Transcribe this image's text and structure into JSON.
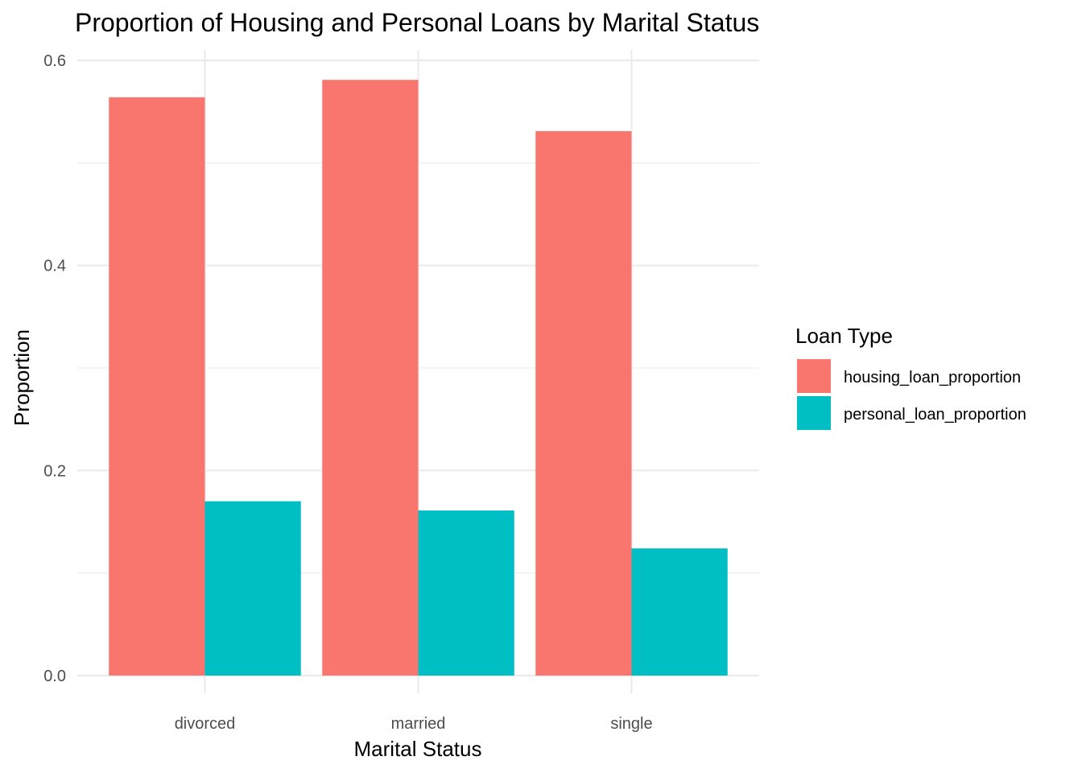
{
  "chart_data": {
    "type": "bar",
    "title": "Proportion of Housing and Personal Loans by Marital Status",
    "xlabel": "Marital Status",
    "ylabel": "Proportion",
    "categories": [
      "divorced",
      "married",
      "single"
    ],
    "series": [
      {
        "name": "housing_loan_proportion",
        "color": "#F8766D",
        "values": [
          0.564,
          0.581,
          0.531
        ]
      },
      {
        "name": "personal_loan_proportion",
        "color": "#00BFC4",
        "values": [
          0.17,
          0.161,
          0.124
        ]
      }
    ],
    "ylim": [
      0,
      0.6
    ],
    "yticks": [
      0.0,
      0.2,
      0.4,
      0.6
    ],
    "ytick_labels": [
      "0.0",
      "0.2",
      "0.4",
      "0.6"
    ],
    "grid": true,
    "bar_mode": "grouped",
    "legend": {
      "title": "Loan Type",
      "position": "right"
    }
  }
}
